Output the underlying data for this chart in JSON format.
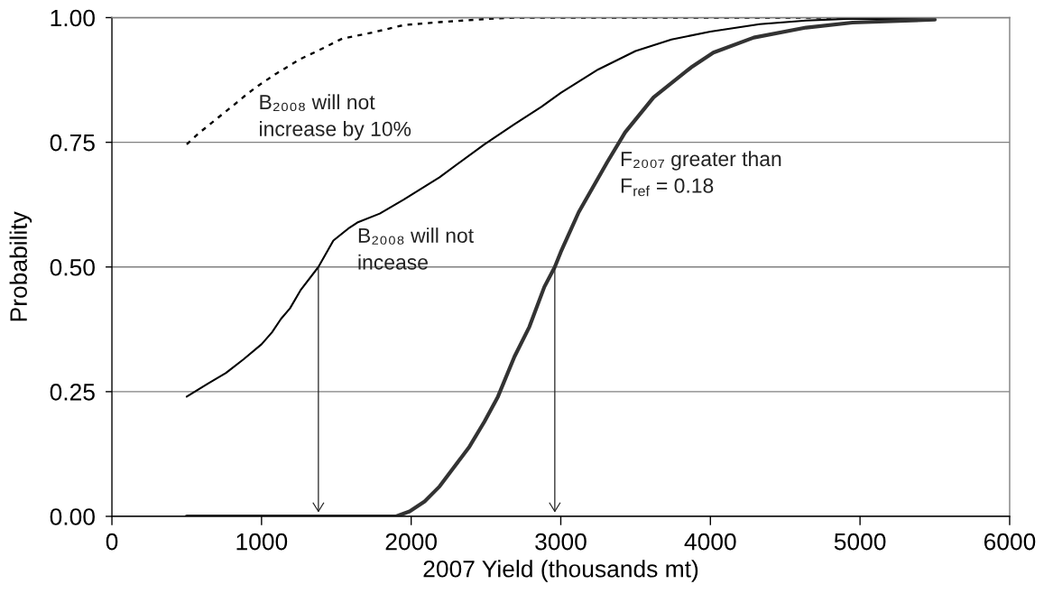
{
  "chart_data": {
    "type": "line",
    "xlabel": "2007 Yield (thousands mt)",
    "ylabel": "Probability",
    "xlim": [
      0,
      6000
    ],
    "xticks": [
      0,
      1000,
      2000,
      3000,
      4000,
      5000,
      6000
    ],
    "ylim": [
      0,
      1
    ],
    "yticks": [
      {
        "value": 0,
        "label": "0.00"
      },
      {
        "value": 0.25,
        "label": "0.25"
      },
      {
        "value": 0.5,
        "label": "0.50"
      },
      {
        "value": 0.75,
        "label": "0.75"
      },
      {
        "value": 1,
        "label": "1.00"
      }
    ],
    "grid": "y",
    "series": [
      {
        "color": "#000000",
        "line_style": "dashed",
        "x": [
          500,
          580,
          820,
          900,
          980,
          1100,
          1260,
          1380,
          1540,
          1740,
          1950,
          2190,
          2490,
          2690,
          5500
        ],
        "values": [
          0.746,
          0.768,
          0.826,
          0.846,
          0.864,
          0.888,
          0.917,
          0.934,
          0.958,
          0.97,
          0.985,
          0.991,
          0.997,
          1.0,
          1.0
        ]
      },
      {
        "color": "#000000",
        "line_style": "solid",
        "x": [
          500,
          640,
          760,
          880,
          1000,
          1070,
          1130,
          1190,
          1260,
          1380,
          1480,
          1580,
          1640,
          1790,
          1950,
          2030,
          2190,
          2490,
          2690,
          2870,
          3000,
          3250,
          3500,
          3740,
          4000,
          4330,
          4640,
          4950,
          5500
        ],
        "values": [
          0.24,
          0.266,
          0.287,
          0.315,
          0.345,
          0.369,
          0.396,
          0.417,
          0.453,
          0.5,
          0.553,
          0.577,
          0.589,
          0.607,
          0.635,
          0.65,
          0.68,
          0.746,
          0.786,
          0.821,
          0.849,
          0.896,
          0.933,
          0.956,
          0.972,
          0.987,
          0.994,
          0.998,
          0.997
        ]
      },
      {
        "color": "#333333",
        "line_style": "solid",
        "x": [
          500,
          1000,
          1500,
          1900,
          1990,
          2090,
          2190,
          2290,
          2390,
          2490,
          2580,
          2690,
          2790,
          2890,
          2960,
          3000,
          3120,
          3310,
          3430,
          3620,
          3870,
          4020,
          4290,
          4640,
          4950,
          5500
        ],
        "values": [
          0,
          0,
          0,
          0,
          0.01,
          0.03,
          0.06,
          0.1,
          0.14,
          0.19,
          0.24,
          0.32,
          0.38,
          0.46,
          0.5,
          0.53,
          0.61,
          0.71,
          0.77,
          0.84,
          0.9,
          0.93,
          0.96,
          0.98,
          0.99,
          0.996
        ]
      },
      {
        "color": "#222222",
        "line_style": "solid",
        "x": [
          1380,
          1380
        ],
        "values": [
          0.5,
          0.01
        ]
      },
      {
        "color": "#222222",
        "line_style": "solid",
        "x": [
          2960,
          2960
        ],
        "values": [
          0.5,
          0.01
        ]
      }
    ],
    "annotations": [
      {
        "text": "B₂₀₀₈ will not\nincrease by 10%",
        "x": 980,
        "y": 0.864
      },
      {
        "text": "B₂₀₀₈ will not\nincease",
        "x": 1640,
        "y": 0.589
      },
      {
        "text": "F₂₀₀₇ greater than\nF$_{ref}$ = 0.18",
        "x": 3370,
        "y": 0.74
      }
    ]
  }
}
